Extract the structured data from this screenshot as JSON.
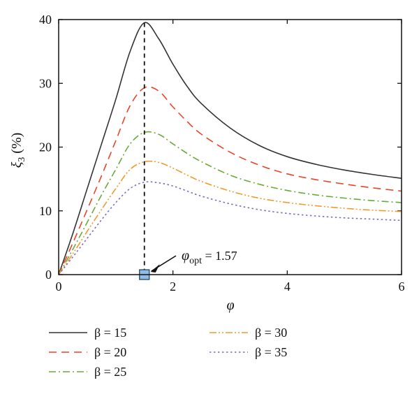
{
  "chart_data": {
    "type": "line",
    "title": "",
    "xlabel": "φ",
    "ylabel_symbol": "ξ",
    "ylabel_subscript": "3",
    "ylabel_suffix": " (%)",
    "xlim": [
      0,
      6
    ],
    "ylim": [
      0,
      40
    ],
    "xticks": [
      0,
      2,
      4,
      6
    ],
    "yticks": [
      0,
      10,
      20,
      30,
      40
    ],
    "grid": false,
    "legend_position": "below",
    "series": [
      {
        "name": "β = 15",
        "color": "#333333",
        "dash": "solid",
        "x": [
          0,
          0.25,
          0.5,
          0.75,
          1.0,
          1.25,
          1.5,
          1.75,
          2.0,
          2.25,
          2.5,
          3.0,
          3.5,
          4.0,
          4.5,
          5.0,
          5.5,
          6.0
        ],
        "y": [
          0,
          6.5,
          13.5,
          20.5,
          27.5,
          35.0,
          39.5,
          37.0,
          33.0,
          29.5,
          26.8,
          23.0,
          20.3,
          18.5,
          17.3,
          16.4,
          15.7,
          15.1
        ]
      },
      {
        "name": "β = 20",
        "color": "#e8452a",
        "dash": "longdash",
        "x": [
          0,
          0.25,
          0.5,
          0.75,
          1.0,
          1.25,
          1.5,
          1.75,
          2.0,
          2.25,
          2.5,
          3.0,
          3.5,
          4.0,
          4.5,
          5.0,
          5.5,
          6.0
        ],
        "y": [
          0,
          5.0,
          10.2,
          15.5,
          21.0,
          26.5,
          29.3,
          28.8,
          26.3,
          24.0,
          22.0,
          19.2,
          17.2,
          15.8,
          14.9,
          14.2,
          13.6,
          13.1
        ]
      },
      {
        "name": "β = 25",
        "color": "#6aaa3a",
        "dash": "dashdot",
        "x": [
          0,
          0.25,
          0.5,
          0.75,
          1.0,
          1.25,
          1.5,
          1.75,
          2.0,
          2.25,
          2.5,
          3.0,
          3.5,
          4.0,
          4.5,
          5.0,
          5.5,
          6.0
        ],
        "y": [
          0,
          4.0,
          8.2,
          12.5,
          16.5,
          20.5,
          22.3,
          22.0,
          20.5,
          19.0,
          17.7,
          15.6,
          14.2,
          13.2,
          12.5,
          12.0,
          11.6,
          11.3
        ]
      },
      {
        "name": "β = 30",
        "color": "#f29a2e",
        "dash": "dashdotdot",
        "x": [
          0,
          0.25,
          0.5,
          0.75,
          1.0,
          1.25,
          1.5,
          1.75,
          2.0,
          2.25,
          2.5,
          3.0,
          3.5,
          4.0,
          4.5,
          5.0,
          5.5,
          6.0
        ],
        "y": [
          0,
          3.3,
          6.8,
          10.2,
          13.5,
          16.5,
          17.7,
          17.6,
          16.7,
          15.6,
          14.6,
          13.1,
          12.0,
          11.3,
          10.8,
          10.4,
          10.1,
          9.9
        ]
      },
      {
        "name": "β = 35",
        "color": "#7a6cc0",
        "dash": "dotted",
        "x": [
          0,
          0.25,
          0.5,
          0.75,
          1.0,
          1.25,
          1.5,
          1.75,
          2.0,
          2.25,
          2.5,
          3.0,
          3.5,
          4.0,
          4.5,
          5.0,
          5.5,
          6.0
        ],
        "y": [
          0,
          2.8,
          5.7,
          8.6,
          11.3,
          13.5,
          14.5,
          14.4,
          13.9,
          13.1,
          12.3,
          11.1,
          10.2,
          9.6,
          9.2,
          8.9,
          8.7,
          8.5
        ]
      }
    ],
    "annotation": {
      "symbol": "φ",
      "subscript": "opt",
      "value_text": " = 1.57",
      "x": 1.5,
      "y": 0,
      "marker_color": "#8fbde6",
      "vertical_line": true
    }
  }
}
